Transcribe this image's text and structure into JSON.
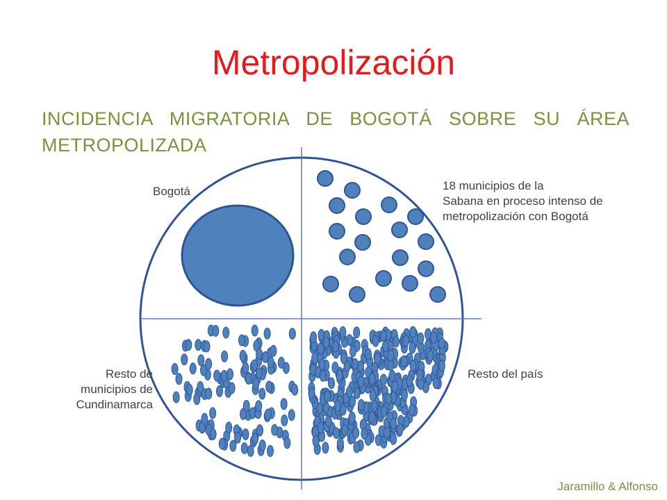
{
  "title": "Metropolización",
  "subtitle_line1": "INCIDENCIA MIGRATORIA DE BOGOTÁ SOBRE SU ÁREA",
  "subtitle_line2": "METROPOLIZADA",
  "quadrants": {
    "top_left": "Bogotá",
    "top_right": [
      "18 municipios de la",
      "Sabana en proceso intenso de",
      "metropolización con Bogotá"
    ],
    "bottom_left": [
      "Resto de",
      "municipios de",
      "Cundinamarca"
    ],
    "bottom_right": "Resto del país"
  },
  "credit": "Jaramillo & Alfonso",
  "colors": {
    "title": "#e8191b",
    "subtitle": "#77933c",
    "credit": "#77933c",
    "outline": "#2f5496",
    "fill": "#4f81bd"
  }
}
